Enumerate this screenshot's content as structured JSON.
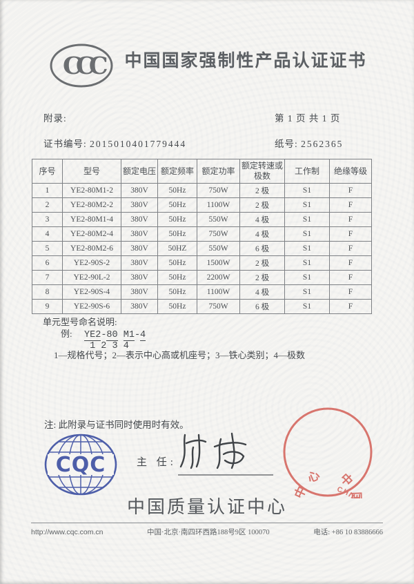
{
  "header": {
    "title": "中国国家强制性产品认证证书",
    "ccc_logo_text": "CCC"
  },
  "meta": {
    "appendix_label": "附录:",
    "page_info": "第 1 页 共 1 页",
    "cert_no_label": "证书编号:",
    "cert_no": "2015010401779444",
    "paper_no_label": "纸号:",
    "paper_no": "2562365"
  },
  "table": {
    "headers": [
      "序号",
      "型号",
      "额定电压",
      "额定频率",
      "额定功率",
      "额定转速或极数",
      "工作制",
      "绝缘等级"
    ],
    "rows": [
      [
        "1",
        "YE2-80M1-2",
        "380V",
        "50Hz",
        "750W",
        "2 极",
        "S1",
        "F"
      ],
      [
        "2",
        "YE2-80M2-2",
        "380V",
        "50Hz",
        "1100W",
        "2 极",
        "S1",
        "F"
      ],
      [
        "3",
        "YE2-80M1-4",
        "380V",
        "50Hz",
        "550W",
        "4 极",
        "S1",
        "F"
      ],
      [
        "4",
        "YE2-80M2-4",
        "380V",
        "50Hz",
        "750W",
        "4 极",
        "S1",
        "F"
      ],
      [
        "5",
        "YE2-80M2-6",
        "380V",
        "50HZ",
        "550W",
        "6 极",
        "S1",
        "F"
      ],
      [
        "6",
        "YE2-90S-2",
        "380V",
        "50Hz",
        "1500W",
        "2 极",
        "S1",
        "F"
      ],
      [
        "7",
        "YE2-90L-2",
        "380V",
        "50Hz",
        "2200W",
        "2 极",
        "S1",
        "F"
      ],
      [
        "8",
        "YE2-90S-4",
        "380V",
        "50Hz",
        "1100W",
        "4 极",
        "S1",
        "F"
      ],
      [
        "9",
        "YE2-90S-6",
        "380V",
        "50Hz",
        "750W",
        "6 极",
        "S1",
        "F"
      ]
    ]
  },
  "naming": {
    "heading": "单元型号命名说明:",
    "example_label": "例:",
    "example_parts": [
      {
        "text": "YE2",
        "underline": true
      },
      {
        "text": "-",
        "underline": false
      },
      {
        "text": "80",
        "underline": true
      },
      {
        "text": " ",
        "underline": false
      },
      {
        "text": "M1",
        "underline": true
      },
      {
        "text": "-",
        "underline": false
      },
      {
        "text": "4",
        "underline": true
      }
    ],
    "digits": [
      "1",
      "2",
      "3",
      "4"
    ],
    "legend": "1—规格代号；2—表示中心高或机座号；3—铁心类别；4—极数"
  },
  "signoff": {
    "note": "注: 此附录与证书同时使用时有效。",
    "director_label": "主 任:",
    "cqc_logo_text": "CQC",
    "stamp_en": "CHINA QUALITY CERTIFICATION CENTRE",
    "stamp_cn": "中国质量认证中心"
  },
  "footer": {
    "org_name": "中国质量认证中心",
    "website": "http://www.cqc.com.cn",
    "address": "中国·北京·南四环西路188号9区 100070",
    "phone": "电话: +86 10 83886666"
  },
  "colors": {
    "stamp_red": "#d4645c",
    "cqc_blue": "#4d5ea9",
    "ink": "#4c5054",
    "paper": "#f6f5f2"
  }
}
